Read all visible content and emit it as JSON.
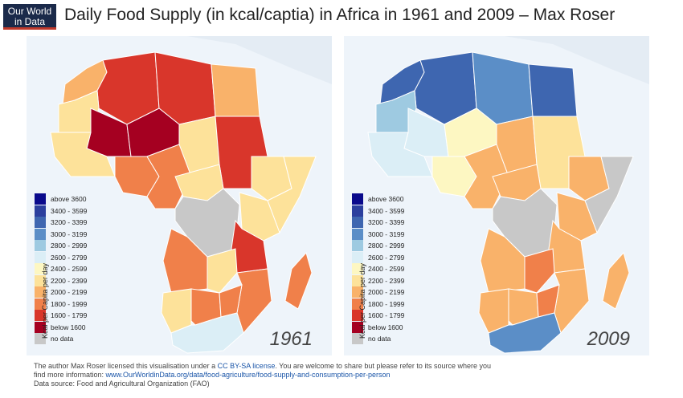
{
  "logo": {
    "line1": "Our World",
    "line2": "in Data"
  },
  "title": "Daily Food Supply (in kcal/captia) in Africa in 1961 and 2009 – Max Roser",
  "legend": {
    "axis_label": "Kcal per Capita per day",
    "items": [
      {
        "label": "above 3600",
        "color": "#0a0a8c"
      },
      {
        "label": "3400 - 3599",
        "color": "#2b3f9e"
      },
      {
        "label": "3200 - 3399",
        "color": "#3e66b0"
      },
      {
        "label": "3000 - 3199",
        "color": "#5b8ec7"
      },
      {
        "label": "2800 - 2999",
        "color": "#9ecae1"
      },
      {
        "label": "2600 - 2799",
        "color": "#dbeef6"
      },
      {
        "label": "2400 - 2599",
        "color": "#fdf7c2"
      },
      {
        "label": "2200 - 2399",
        "color": "#fde29a"
      },
      {
        "label": "2000 - 2199",
        "color": "#f9b26a"
      },
      {
        "label": "1800 - 1999",
        "color": "#f0804a"
      },
      {
        "label": "1600 - 1799",
        "color": "#d9362b"
      },
      {
        "label": "below 1600",
        "color": "#a50021"
      },
      {
        "label": "no data",
        "color": "#c8c8c8"
      }
    ]
  },
  "maps": [
    {
      "year": "1961",
      "regions": [
        {
          "id": "morocco",
          "color": "#f9b26a"
        },
        {
          "id": "algeria",
          "color": "#d9362b"
        },
        {
          "id": "libya",
          "color": "#d9362b"
        },
        {
          "id": "egypt",
          "color": "#f9b26a"
        },
        {
          "id": "mauritania",
          "color": "#fde29a"
        },
        {
          "id": "mali",
          "color": "#a50021"
        },
        {
          "id": "niger",
          "color": "#a50021"
        },
        {
          "id": "chad",
          "color": "#fde29a"
        },
        {
          "id": "sudan",
          "color": "#d9362b"
        },
        {
          "id": "ethiopia",
          "color": "#fde29a"
        },
        {
          "id": "somalia",
          "color": "#fde29a"
        },
        {
          "id": "west_coast",
          "color": "#fde29a"
        },
        {
          "id": "nigeria",
          "color": "#f0804a"
        },
        {
          "id": "cameroon",
          "color": "#f0804a"
        },
        {
          "id": "car",
          "color": "#fde29a"
        },
        {
          "id": "drc",
          "color": "#c8c8c8"
        },
        {
          "id": "kenya",
          "color": "#fde29a"
        },
        {
          "id": "tanzania",
          "color": "#d9362b"
        },
        {
          "id": "angola",
          "color": "#f0804a"
        },
        {
          "id": "zambia",
          "color": "#fde29a"
        },
        {
          "id": "mozambique",
          "color": "#f0804a"
        },
        {
          "id": "namibia",
          "color": "#fde29a"
        },
        {
          "id": "botswana",
          "color": "#f0804a"
        },
        {
          "id": "zimbabwe",
          "color": "#f0804a"
        },
        {
          "id": "south_africa",
          "color": "#dbeef6"
        },
        {
          "id": "madagascar",
          "color": "#f0804a"
        }
      ]
    },
    {
      "year": "2009",
      "regions": [
        {
          "id": "morocco",
          "color": "#3e66b0"
        },
        {
          "id": "algeria",
          "color": "#3e66b0"
        },
        {
          "id": "libya",
          "color": "#5b8ec7"
        },
        {
          "id": "egypt",
          "color": "#3e66b0"
        },
        {
          "id": "mauritania",
          "color": "#9ecae1"
        },
        {
          "id": "mali",
          "color": "#dbeef6"
        },
        {
          "id": "niger",
          "color": "#fdf7c2"
        },
        {
          "id": "chad",
          "color": "#f9b26a"
        },
        {
          "id": "sudan",
          "color": "#fde29a"
        },
        {
          "id": "ethiopia",
          "color": "#f9b26a"
        },
        {
          "id": "somalia",
          "color": "#c8c8c8"
        },
        {
          "id": "west_coast",
          "color": "#dbeef6"
        },
        {
          "id": "nigeria",
          "color": "#fdf7c2"
        },
        {
          "id": "cameroon",
          "color": "#f9b26a"
        },
        {
          "id": "car",
          "color": "#f9b26a"
        },
        {
          "id": "drc",
          "color": "#c8c8c8"
        },
        {
          "id": "kenya",
          "color": "#f9b26a"
        },
        {
          "id": "tanzania",
          "color": "#f9b26a"
        },
        {
          "id": "angola",
          "color": "#f9b26a"
        },
        {
          "id": "zambia",
          "color": "#f0804a"
        },
        {
          "id": "mozambique",
          "color": "#f9b26a"
        },
        {
          "id": "namibia",
          "color": "#f9b26a"
        },
        {
          "id": "botswana",
          "color": "#f9b26a"
        },
        {
          "id": "zimbabwe",
          "color": "#f0804a"
        },
        {
          "id": "south_africa",
          "color": "#5b8ec7"
        },
        {
          "id": "madagascar",
          "color": "#f9b26a"
        }
      ]
    }
  ],
  "footer": {
    "line1_prefix": "The author Max Roser licensed this visualisation under a ",
    "license_link": "CC BY-SA license",
    "line1_suffix": ". You are welcome to share but please refer to its source where you",
    "line2_prefix": "find more information: ",
    "source_link": "www.OurWorldinData.org/data/food-agriculture/food-supply-and-consumption-per-person",
    "line3": "Data source: Food and Agricultural Organization (FAO)"
  }
}
